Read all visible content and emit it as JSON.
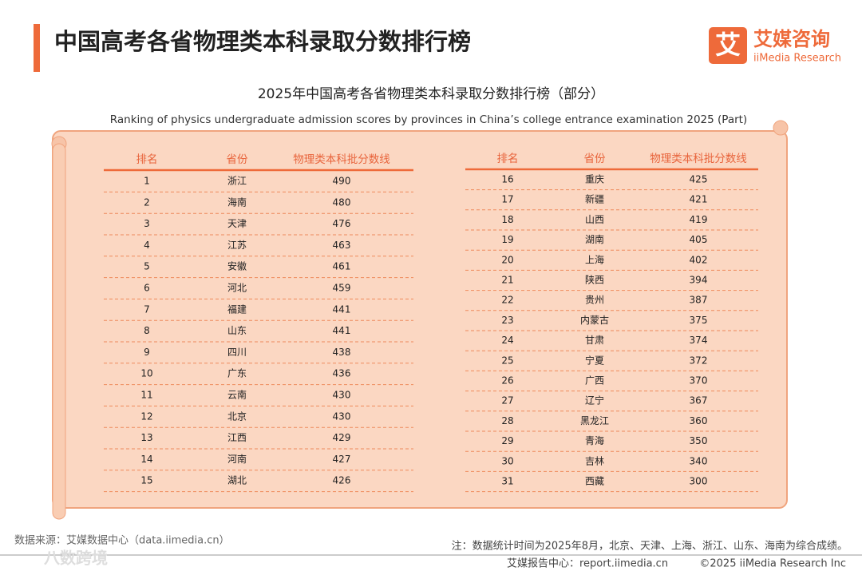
{
  "header": {
    "title": "中国高考各省物理类本科录取分数排行榜",
    "logo_cn": "艾媒咨询",
    "logo_en": "iiMedia Research",
    "logo_mark": "艾"
  },
  "subtitle": "2025年中国高考各省物理类本科录取分数排行榜（部分）",
  "subtitle_en": "Ranking of physics undergraduate admission scores by provinces in China’s college entrance examination 2025 (Part)",
  "tables": [
    {
      "columns": [
        "排名",
        "省份",
        "物理类本科批分数线"
      ],
      "rows": [
        [
          1,
          "浙江",
          490
        ],
        [
          2,
          "海南",
          480
        ],
        [
          3,
          "天津",
          476
        ],
        [
          4,
          "江苏",
          463
        ],
        [
          5,
          "安徽",
          461
        ],
        [
          6,
          "河北",
          459
        ],
        [
          7,
          "福建",
          441
        ],
        [
          8,
          "山东",
          441
        ],
        [
          9,
          "四川",
          438
        ],
        [
          10,
          "广东",
          436
        ],
        [
          11,
          "云南",
          430
        ],
        [
          12,
          "北京",
          430
        ],
        [
          13,
          "江西",
          429
        ],
        [
          14,
          "河南",
          427
        ],
        [
          15,
          "湖北",
          426
        ]
      ]
    },
    {
      "columns": [
        "排名",
        "省份",
        "物理类本科批分数线"
      ],
      "rows": [
        [
          16,
          "重庆",
          425
        ],
        [
          17,
          "新疆",
          421
        ],
        [
          18,
          "山西",
          419
        ],
        [
          19,
          "湖南",
          405
        ],
        [
          20,
          "上海",
          402
        ],
        [
          21,
          "陕西",
          394
        ],
        [
          22,
          "贵州",
          387
        ],
        [
          23,
          "内蒙古",
          375
        ],
        [
          24,
          "甘肃",
          374
        ],
        [
          25,
          "宁夏",
          372
        ],
        [
          26,
          "广西",
          370
        ],
        [
          27,
          "辽宁",
          367
        ],
        [
          28,
          "黑龙江",
          360
        ],
        [
          29,
          "青海",
          350
        ],
        [
          30,
          "吉林",
          340
        ],
        [
          31,
          "西藏",
          300
        ]
      ]
    }
  ],
  "footer": {
    "source": "数据来源：艾媒数据中心（data.iimedia.cn）",
    "note": "注：数据统计时间为2025年8月，北京、天津、上海、浙江、山东、海南为综合成绩。",
    "report": "艾媒报告中心：report.iimedia.cn",
    "copyright": "©2025  iiMedia Research  Inc",
    "watermark": "八数跨境"
  }
}
